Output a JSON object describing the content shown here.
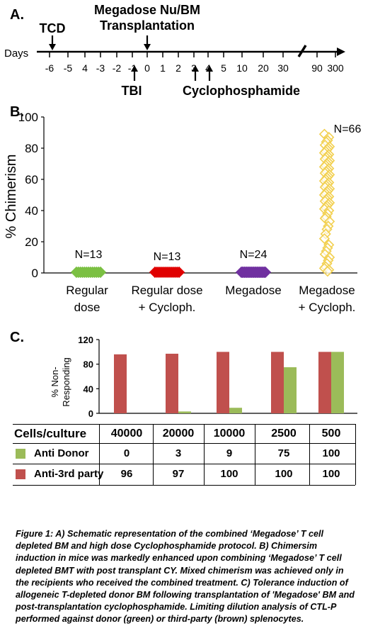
{
  "panel_a": {
    "label": "A.",
    "days_label": "Days",
    "ticks": [
      "-6",
      "-5",
      "4",
      "-3",
      "-2",
      "-1",
      "0",
      "1",
      "2",
      "3",
      "4",
      "5",
      "10",
      "20",
      "30",
      "90",
      "300"
    ],
    "events": {
      "tcd": "TCD",
      "transplant_line1": "Megadose Nu/BM",
      "transplant_line2": "Transplantation",
      "tbi": "TBI",
      "cyclo": "Cyclophosphamide"
    }
  },
  "chart_data": [
    {
      "type": "scatter",
      "panel": "B.",
      "ylabel": "% Chimerism",
      "ylim": [
        0,
        100
      ],
      "yticks": [
        0,
        20,
        40,
        60,
        80,
        100
      ],
      "categories": [
        "Regular dose",
        "Regular dose + Cycloph.",
        "Megadose",
        "Megadose + Cycloph."
      ],
      "category_lines": [
        [
          "Regular",
          "dose"
        ],
        [
          "Regular dose",
          "+ Cycloph."
        ],
        [
          "Megadose",
          ""
        ],
        [
          "Megadose",
          "+ Cycloph."
        ]
      ],
      "counts": [
        "N=13",
        "N=13",
        "N=24",
        "N=66"
      ],
      "colors": [
        "#7bc043",
        "#e00000",
        "#7030a0",
        "#f2d050"
      ],
      "series": [
        {
          "values": [
            0,
            0,
            0,
            0,
            0,
            0,
            0,
            0,
            0,
            0,
            0,
            0,
            0
          ]
        },
        {
          "values": [
            0,
            0,
            0,
            0,
            0,
            0,
            0,
            0,
            0,
            0,
            0,
            0,
            0
          ]
        },
        {
          "values": [
            0,
            0,
            0,
            0,
            0,
            0,
            0,
            0,
            0,
            0,
            0,
            0,
            0,
            0,
            0,
            0,
            0,
            0,
            0,
            0,
            0,
            0,
            0,
            0
          ]
        },
        {
          "values": [
            89,
            87,
            85,
            84,
            82,
            81,
            80,
            79,
            78,
            77,
            76,
            75,
            74,
            73,
            72,
            71,
            70,
            69,
            68,
            67,
            66,
            65,
            64,
            63,
            62,
            61,
            60,
            59,
            58,
            57,
            56,
            55,
            54,
            53,
            52,
            51,
            50,
            49,
            48,
            47,
            46,
            45,
            44,
            43,
            42,
            41,
            40,
            38,
            36,
            35,
            33,
            30,
            28,
            25,
            22,
            18,
            16,
            14,
            12,
            10,
            8,
            6,
            4,
            3,
            2,
            1
          ]
        }
      ]
    },
    {
      "type": "bar",
      "panel": "C.",
      "ylabel_line1": "% Non-",
      "ylabel_line2": "Responding",
      "ylim": [
        0,
        120
      ],
      "yticks": [
        0,
        40,
        80,
        120
      ],
      "row_header": "Cells/culture",
      "categories": [
        "40000",
        "20000",
        "10000",
        "2500",
        "500"
      ],
      "series": [
        {
          "name": "Anti Donor",
          "color": "#9bbb59",
          "values": [
            0,
            3,
            9,
            75,
            100
          ]
        },
        {
          "name": "Anti-3rd party",
          "color": "#c0504d",
          "values": [
            96,
            97,
            100,
            100,
            100
          ]
        }
      ]
    }
  ],
  "caption": "Figure 1: A) Schematic representation of the combined ‘Megadose’ T cell depleted BM and high dose Cyclophosphamide protocol. B) Chimersim induction in mice was markedly enhanced upon combining ‘Megadose’ T cell depleted BMT with post transplant CY. Mixed chimerism was achieved only in the recipients who received the combined treatment. C) Tolerance induction of allogeneic T-depleted donor BM following transplantation of 'Megadose' BM and post-transplantation cyclophosphamide. Limiting dilution analysis of CTL-P performed against donor (green) or third-party (brown) splenocytes."
}
